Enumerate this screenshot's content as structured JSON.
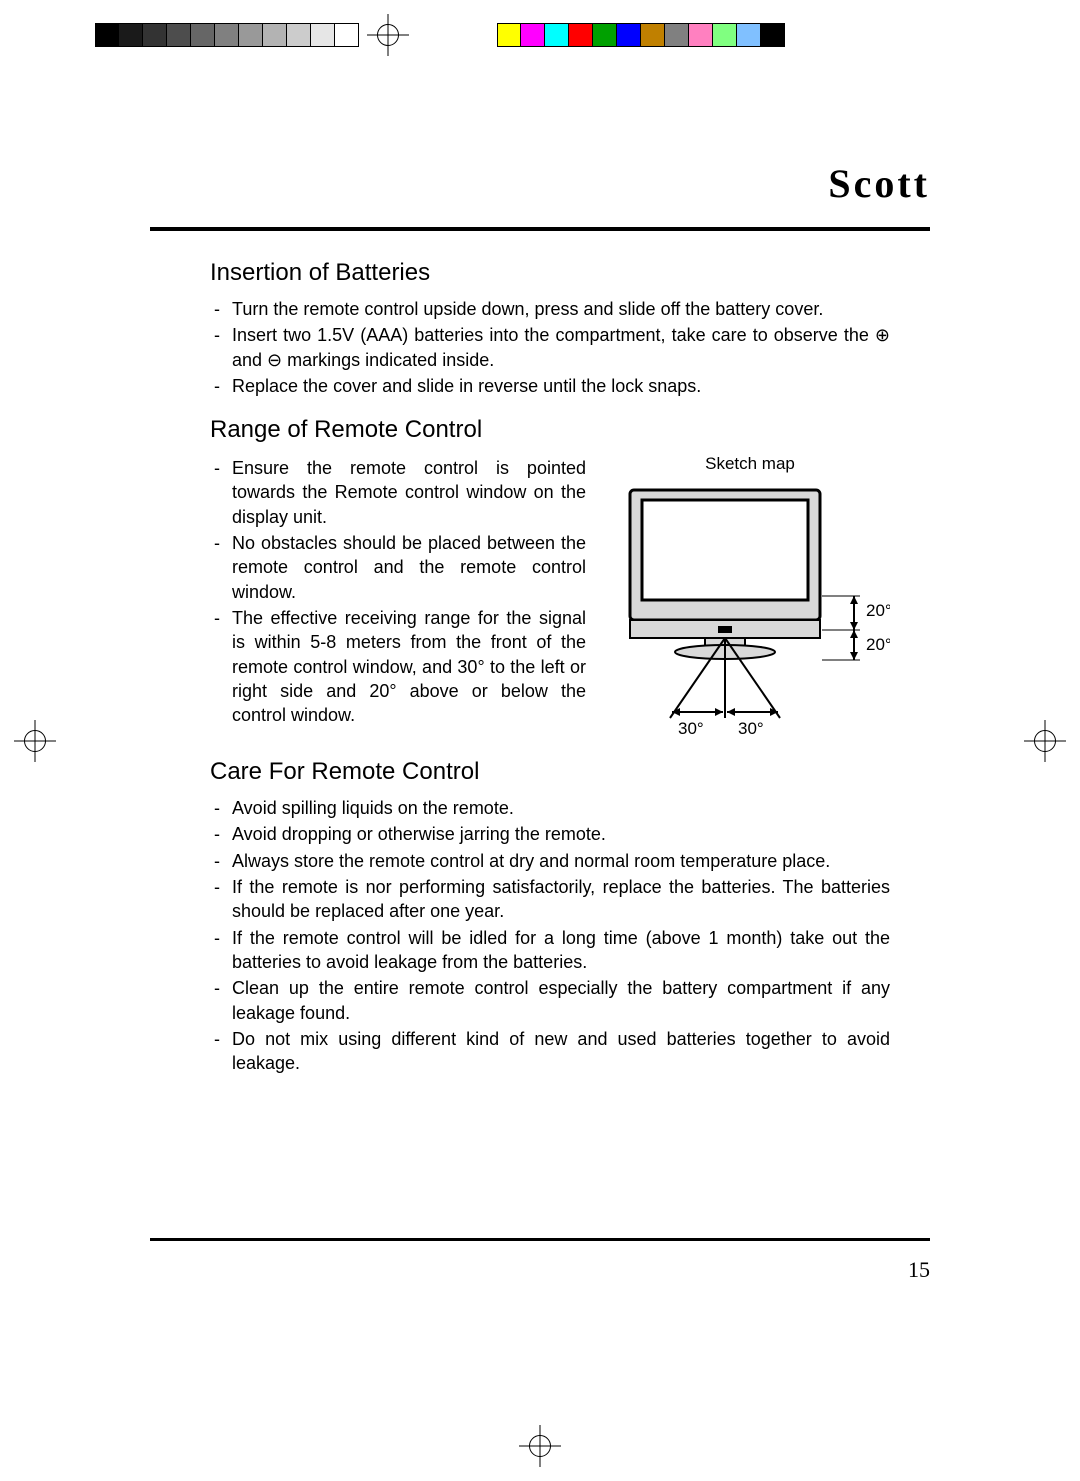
{
  "brand": "Scott",
  "page_number": "15",
  "registration": {
    "grayscale": [
      "#000000",
      "#1a1a1a",
      "#333333",
      "#4d4d4d",
      "#666666",
      "#808080",
      "#999999",
      "#b3b3b3",
      "#cccccc",
      "#e6e6e6",
      "#ffffff"
    ],
    "colors": [
      "#ffff00",
      "#ff00ff",
      "#00ffff",
      "#ff0000",
      "#00a000",
      "#0000ff",
      "#c08000",
      "#808080",
      "#ff80c0",
      "#80ff80",
      "#80c0ff",
      "#000000"
    ]
  },
  "sections": {
    "insertion": {
      "title": "Insertion of Batteries",
      "items": [
        "Turn the remote control upside down, press and slide off the battery cover.",
        "Insert two 1.5V (AAA) batteries into the compartment, take care to observe the ⊕ and ⊖ markings indicated inside.",
        "Replace the cover and slide in reverse until the lock snaps."
      ]
    },
    "range": {
      "title": "Range of Remote Control",
      "items": [
        "Ensure the remote control is pointed towards the Remote control window on the display unit.",
        "No obstacles should be placed between the remote control and the remote control window.",
        "The effective receiving range for the signal is within 5-8 meters from the front of the remote control window, and 30° to the left or right side and 20° above or below the control window."
      ],
      "sketch": {
        "label": "Sketch map",
        "angle_top": "20°",
        "angle_bottom": "20°",
        "angle_left": "30°",
        "angle_right": "30°"
      }
    },
    "care": {
      "title": "Care For Remote Control",
      "items": [
        "Avoid spilling liquids on the remote.",
        "Avoid dropping or otherwise jarring the remote.",
        "Always store the remote control at dry and normal room temperature place.",
        "If the remote is nor performing satisfactorily, replace the batteries. The batteries should be replaced after one year.",
        "If the remote control will be idled for a long time (above 1 month) take out the batteries to avoid leakage from the batteries.",
        "Clean up the entire remote control especially the battery compartment if any leakage found.",
        "Do not mix using different kind of new and used batteries together to avoid leakage."
      ]
    }
  },
  "diagram_style": {
    "stroke": "#000000",
    "fill_light": "#d9d9d9",
    "fill_white": "#ffffff",
    "line_width": 2
  }
}
